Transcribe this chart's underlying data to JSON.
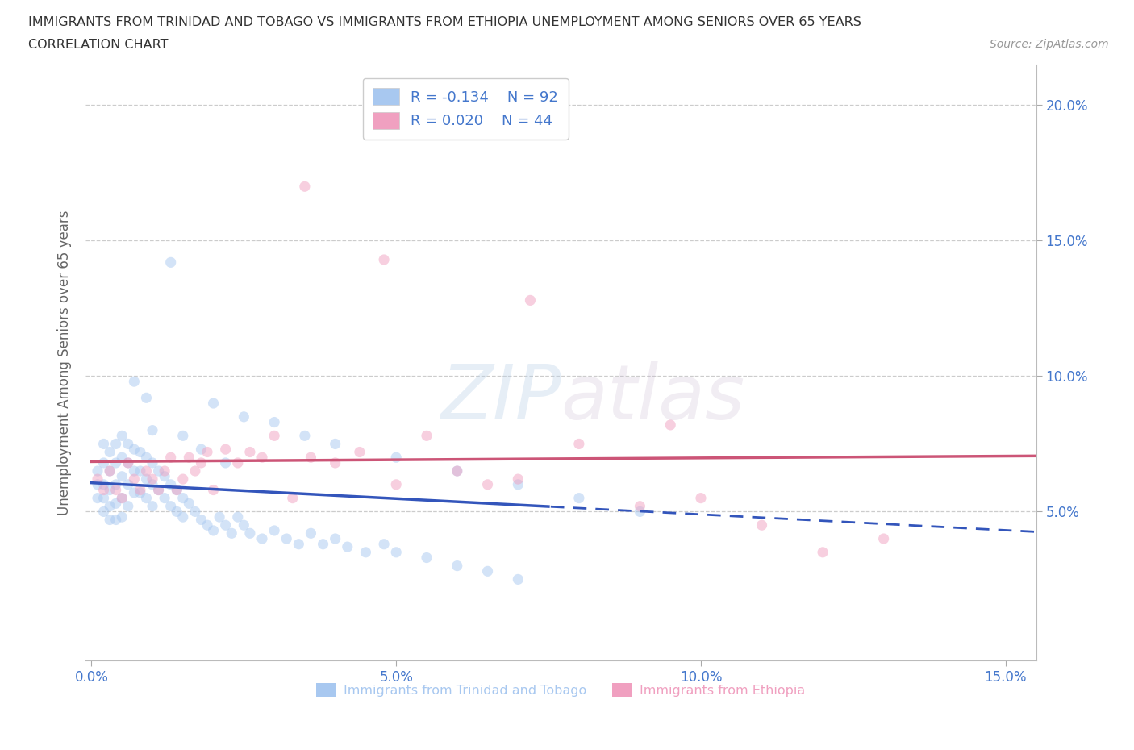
{
  "title_line1": "IMMIGRANTS FROM TRINIDAD AND TOBAGO VS IMMIGRANTS FROM ETHIOPIA UNEMPLOYMENT AMONG SENIORS OVER 65 YEARS",
  "title_line2": "CORRELATION CHART",
  "source_text": "Source: ZipAtlas.com",
  "ylabel": "Unemployment Among Seniors over 65 years",
  "xlim": [
    -0.001,
    0.155
  ],
  "ylim": [
    -0.005,
    0.215
  ],
  "xtick_vals": [
    0.0,
    0.05,
    0.1,
    0.15
  ],
  "xtick_labels": [
    "0.0%",
    "5.0%",
    "10.0%",
    "15.0%"
  ],
  "ytick_vals": [
    0.05,
    0.1,
    0.15,
    0.2
  ],
  "ytick_labels": [
    "5.0%",
    "10.0%",
    "15.0%",
    "20.0%"
  ],
  "tt_label": "Immigrants from Trinidad and Tobago",
  "eth_label": "Immigrants from Ethiopia",
  "tt_color": "#a8c8f0",
  "eth_color": "#f0a0c0",
  "tt_line_color": "#3355bb",
  "eth_line_color": "#cc5577",
  "tt_R": -0.134,
  "tt_N": 92,
  "eth_R": 0.02,
  "eth_N": 44,
  "watermark_text": "ZIPatlas",
  "background_color": "#ffffff",
  "grid_color": "#cccccc",
  "scatter_alpha": 0.5,
  "scatter_size": 90,
  "title_fontsize": 11.5,
  "axis_label_fontsize": 12,
  "tick_fontsize": 12,
  "legend_fontsize": 13,
  "tick_color": "#4477cc",
  "ylabel_color": "#666666",
  "title_color": "#333333",
  "source_color": "#999999",
  "legend_text_color": "#4477cc",
  "tt_x": [
    0.001,
    0.001,
    0.001,
    0.002,
    0.002,
    0.002,
    0.002,
    0.002,
    0.003,
    0.003,
    0.003,
    0.003,
    0.003,
    0.004,
    0.004,
    0.004,
    0.004,
    0.004,
    0.005,
    0.005,
    0.005,
    0.005,
    0.005,
    0.006,
    0.006,
    0.006,
    0.006,
    0.007,
    0.007,
    0.007,
    0.008,
    0.008,
    0.008,
    0.009,
    0.009,
    0.009,
    0.01,
    0.01,
    0.01,
    0.011,
    0.011,
    0.012,
    0.012,
    0.013,
    0.013,
    0.014,
    0.014,
    0.015,
    0.015,
    0.016,
    0.017,
    0.018,
    0.019,
    0.02,
    0.021,
    0.022,
    0.023,
    0.024,
    0.025,
    0.026,
    0.028,
    0.03,
    0.032,
    0.034,
    0.036,
    0.038,
    0.04,
    0.042,
    0.045,
    0.048,
    0.05,
    0.055,
    0.06,
    0.065,
    0.07,
    0.007,
    0.009,
    0.013,
    0.02,
    0.025,
    0.03,
    0.035,
    0.04,
    0.05,
    0.06,
    0.07,
    0.08,
    0.09,
    0.01,
    0.015,
    0.018,
    0.022
  ],
  "tt_y": [
    0.065,
    0.06,
    0.055,
    0.075,
    0.068,
    0.06,
    0.055,
    0.05,
    0.072,
    0.065,
    0.058,
    0.052,
    0.047,
    0.075,
    0.068,
    0.06,
    0.053,
    0.047,
    0.078,
    0.07,
    0.063,
    0.055,
    0.048,
    0.075,
    0.068,
    0.06,
    0.052,
    0.073,
    0.065,
    0.057,
    0.072,
    0.065,
    0.057,
    0.07,
    0.062,
    0.055,
    0.068,
    0.06,
    0.052,
    0.065,
    0.058,
    0.063,
    0.055,
    0.06,
    0.052,
    0.058,
    0.05,
    0.055,
    0.048,
    0.053,
    0.05,
    0.047,
    0.045,
    0.043,
    0.048,
    0.045,
    0.042,
    0.048,
    0.045,
    0.042,
    0.04,
    0.043,
    0.04,
    0.038,
    0.042,
    0.038,
    0.04,
    0.037,
    0.035,
    0.038,
    0.035,
    0.033,
    0.03,
    0.028,
    0.025,
    0.098,
    0.092,
    0.142,
    0.09,
    0.085,
    0.083,
    0.078,
    0.075,
    0.07,
    0.065,
    0.06,
    0.055,
    0.05,
    0.08,
    0.078,
    0.073,
    0.068
  ],
  "eth_x": [
    0.001,
    0.002,
    0.003,
    0.004,
    0.005,
    0.006,
    0.007,
    0.008,
    0.009,
    0.01,
    0.011,
    0.012,
    0.013,
    0.014,
    0.015,
    0.016,
    0.017,
    0.018,
    0.019,
    0.02,
    0.022,
    0.024,
    0.026,
    0.028,
    0.03,
    0.033,
    0.036,
    0.04,
    0.044,
    0.05,
    0.055,
    0.06,
    0.065,
    0.07,
    0.08,
    0.09,
    0.1,
    0.11,
    0.12,
    0.13,
    0.035,
    0.048,
    0.072,
    0.095
  ],
  "eth_y": [
    0.062,
    0.058,
    0.065,
    0.058,
    0.055,
    0.068,
    0.062,
    0.058,
    0.065,
    0.062,
    0.058,
    0.065,
    0.07,
    0.058,
    0.062,
    0.07,
    0.065,
    0.068,
    0.072,
    0.058,
    0.073,
    0.068,
    0.072,
    0.07,
    0.078,
    0.055,
    0.07,
    0.068,
    0.072,
    0.06,
    0.078,
    0.065,
    0.06,
    0.062,
    0.075,
    0.052,
    0.055,
    0.045,
    0.035,
    0.04,
    0.17,
    0.143,
    0.128,
    0.082
  ]
}
